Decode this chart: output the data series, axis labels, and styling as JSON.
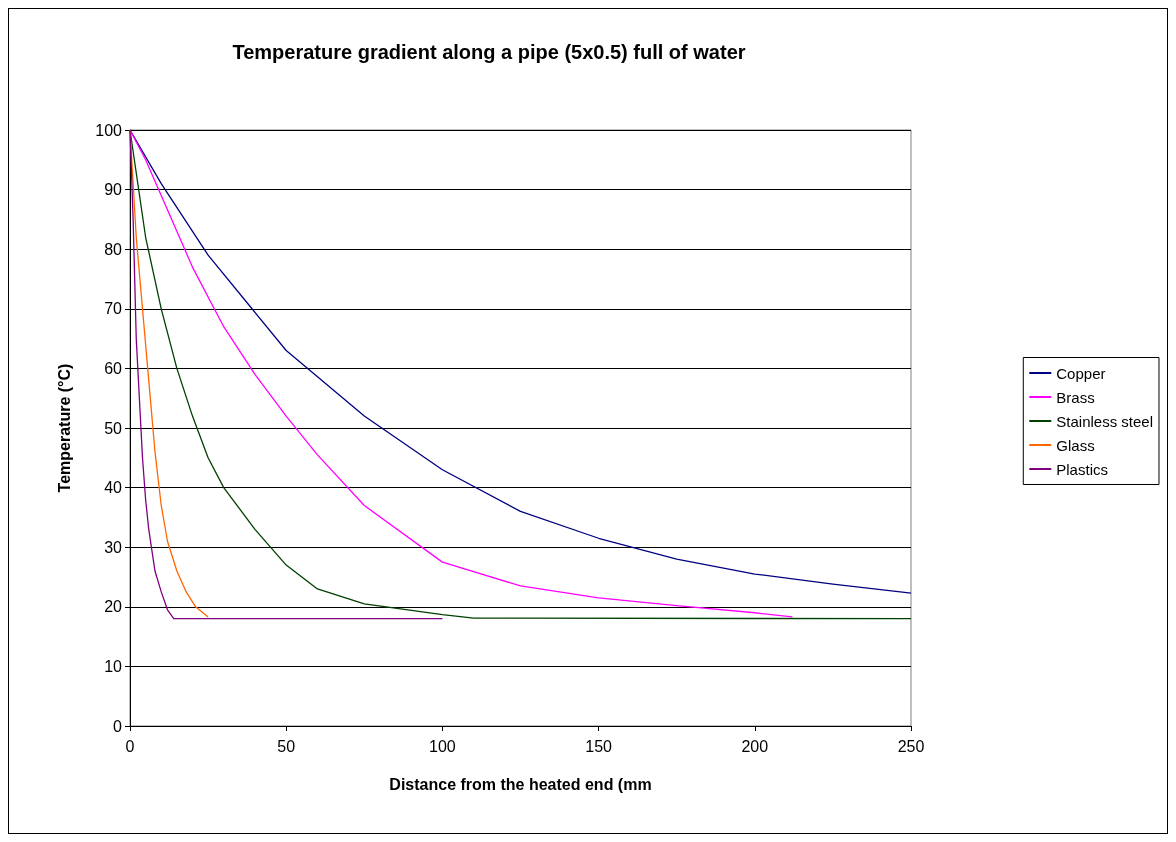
{
  "chart_data": {
    "type": "line",
    "title": "Temperature gradient along a pipe (5x0.5) full of water",
    "xlabel": "Distance from the heated end (mm",
    "ylabel": "Temperature (°C)",
    "xlim": [
      0,
      250
    ],
    "xticks": [
      0,
      50,
      100,
      150,
      200,
      250
    ],
    "ylim": [
      0,
      100
    ],
    "yticks": [
      0,
      10,
      20,
      30,
      40,
      50,
      60,
      70,
      80,
      90,
      100
    ],
    "grid": "y",
    "legend": "right",
    "marker": "none",
    "line_style": "solid",
    "series": [
      {
        "name": "Copper",
        "color": "#000080",
        "x": [
          0,
          10,
          25,
          50,
          75,
          100,
          125,
          150,
          175,
          200,
          225,
          250
        ],
        "values": [
          100,
          91,
          79,
          63,
          52,
          43,
          36,
          31.5,
          28,
          25.5,
          23.8,
          22.3
        ]
      },
      {
        "name": "Brass",
        "color": "#ff00ff",
        "x": [
          0,
          5,
          10,
          20,
          30,
          40,
          50,
          60,
          75,
          100,
          125,
          150,
          175,
          200,
          212
        ],
        "values": [
          100,
          95,
          89,
          77,
          67,
          59,
          52,
          45.5,
          37,
          27.5,
          23.5,
          21.5,
          20.2,
          19,
          18.3
        ]
      },
      {
        "name": "Stainless steel",
        "color": "#004000",
        "x": [
          0,
          5,
          10,
          15,
          20,
          25,
          30,
          40,
          50,
          60,
          75,
          100,
          110,
          250
        ],
        "values": [
          100,
          82,
          70,
          60,
          52,
          45,
          40,
          33,
          27,
          23,
          20.5,
          18.7,
          18.1,
          18
        ]
      },
      {
        "name": "Glass",
        "color": "#ff6600",
        "x": [
          0,
          2,
          4,
          6,
          8,
          10,
          12,
          15,
          18,
          21,
          25
        ],
        "values": [
          100,
          82,
          70,
          58,
          46,
          37,
          31,
          26,
          22.5,
          20,
          18.3
        ]
      },
      {
        "name": "Plastics",
        "color": "#800080",
        "x": [
          0,
          1,
          2,
          3,
          4,
          5,
          6,
          8,
          10,
          12,
          14,
          100
        ],
        "values": [
          100,
          85,
          65,
          55,
          45,
          38,
          33,
          26,
          22.5,
          19.5,
          18,
          18
        ]
      }
    ]
  }
}
